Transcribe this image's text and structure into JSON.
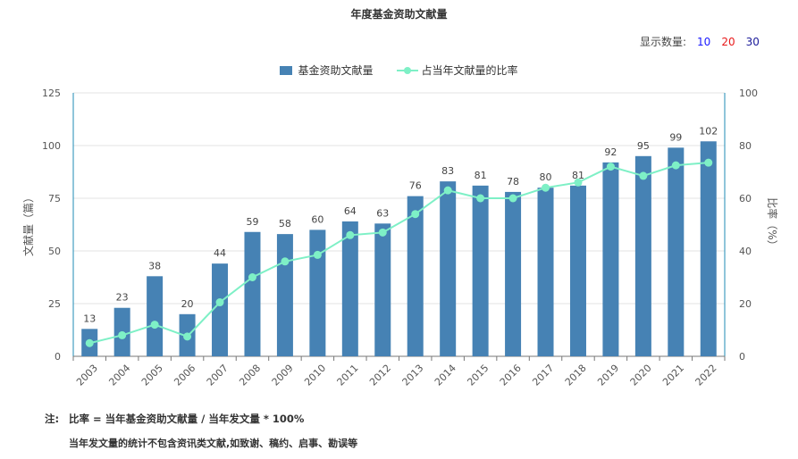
{
  "title": "年度基金资助文献量",
  "display_count": {
    "label": "显示数量:",
    "options": [
      {
        "label": "10",
        "color": "#1a1aff"
      },
      {
        "label": "20",
        "color": "#e8191a"
      },
      {
        "label": "30",
        "color": "#1a1a99"
      }
    ]
  },
  "legend": {
    "bar_label": "基金资助文献量",
    "line_label": "占当年文献量的比率"
  },
  "colors": {
    "bar": "#4682b4",
    "line": "#7ef0c6",
    "axis": "#1f8bb5",
    "grid": "#e3e3e3"
  },
  "chart_data": {
    "type": "bar",
    "categories": [
      "2003",
      "2004",
      "2005",
      "2006",
      "2007",
      "2008",
      "2009",
      "2010",
      "2011",
      "2012",
      "2013",
      "2014",
      "2015",
      "2016",
      "2017",
      "2018",
      "2019",
      "2020",
      "2021",
      "2022"
    ],
    "series": [
      {
        "name": "基金资助文献量",
        "type": "bar",
        "axis": "left",
        "values": [
          13,
          23,
          38,
          20,
          44,
          59,
          58,
          60,
          64,
          63,
          76,
          83,
          81,
          78,
          80,
          81,
          92,
          95,
          99,
          102
        ]
      },
      {
        "name": "占当年文献量的比率",
        "type": "line",
        "axis": "right",
        "values": [
          5,
          8,
          12,
          7.5,
          20.5,
          30,
          36,
          38.5,
          46,
          47,
          54,
          63,
          60,
          60,
          64,
          66,
          72,
          68.5,
          72.5,
          73.5
        ]
      }
    ],
    "ylabel": "文献量（篇）",
    "ylim": [
      0,
      125
    ],
    "yticks": [
      0,
      25,
      50,
      75,
      100,
      125
    ],
    "y2label": "比率（%）",
    "y2lim": [
      0,
      100
    ],
    "y2ticks": [
      0,
      20,
      40,
      60,
      80,
      100
    ],
    "grid": true,
    "legend_position": "top-center"
  },
  "notes": {
    "label": "注:",
    "line1": "比率 = 当年基金资助文献量 / 当年发文量 * 100%",
    "line2": "当年发文量的统计不包含资讯类文献,如致谢、稿约、启事、勘误等"
  }
}
